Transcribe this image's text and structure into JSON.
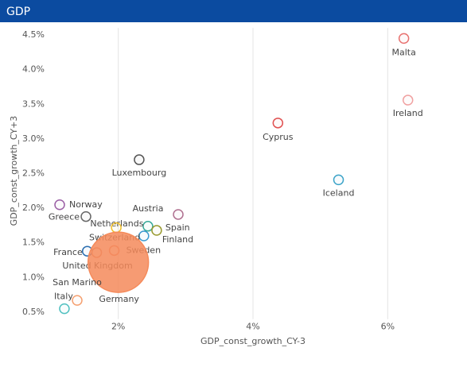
{
  "chart_data": {
    "type": "scatter",
    "title": "GDP",
    "x_label": "GDP_const_growth_CY-3",
    "y_label": "GDP_const_growth_CY+3",
    "xlim": [
      1,
      7
    ],
    "ylim": [
      0.4,
      4.6
    ],
    "xticks": [
      {
        "value": 2,
        "label": "2%"
      },
      {
        "value": 4,
        "label": "4%"
      },
      {
        "value": 6,
        "label": "6%"
      }
    ],
    "yticks": [
      {
        "value": 0.5,
        "label": "0.5%"
      },
      {
        "value": 1.0,
        "label": "1.0%"
      },
      {
        "value": 1.5,
        "label": "1.5%"
      },
      {
        "value": 2.0,
        "label": "2.0%"
      },
      {
        "value": 2.5,
        "label": "2.5%"
      },
      {
        "value": 3.0,
        "label": "3.0%"
      },
      {
        "value": 3.5,
        "label": "3.5%"
      },
      {
        "value": 4.0,
        "label": "4.0%"
      },
      {
        "value": 4.5,
        "label": "4.5%"
      }
    ],
    "grid": true,
    "series": [
      {
        "name": "Malta",
        "color": "#e8716f",
        "x": [
          6.24
        ],
        "values": [
          4.45
        ],
        "sizes": [
          1
        ]
      },
      {
        "name": "Ireland",
        "color": "#f0a0a0",
        "x": [
          6.3
        ],
        "values": [
          3.56
        ],
        "sizes": [
          1
        ]
      },
      {
        "name": "Cyprus",
        "color": "#e05050",
        "x": [
          4.37
        ],
        "values": [
          3.23
        ],
        "sizes": [
          1
        ]
      },
      {
        "name": "Iceland",
        "color": "#3ba3c8",
        "x": [
          5.27
        ],
        "values": [
          2.41
        ],
        "sizes": [
          1
        ]
      },
      {
        "name": "Luxembourg",
        "color": "#555555",
        "x": [
          2.31
        ],
        "values": [
          2.7
        ],
        "sizes": [
          1
        ]
      },
      {
        "name": "Norway",
        "color": "#9b5fa5",
        "x": [
          1.13
        ],
        "values": [
          2.05
        ],
        "sizes": [
          1
        ]
      },
      {
        "name": "Greece",
        "color": "#666666",
        "x": [
          1.52
        ],
        "values": [
          1.88
        ],
        "sizes": [
          1
        ]
      },
      {
        "name": "Austria",
        "color": "#b07090",
        "x": [
          2.89
        ],
        "values": [
          1.91
        ],
        "sizes": [
          1
        ]
      },
      {
        "name": "Netherlands",
        "color": "#3aaa9a",
        "x": [
          2.44
        ],
        "values": [
          1.74
        ],
        "sizes": [
          1
        ]
      },
      {
        "name": "Spain",
        "color": "#999a30",
        "x": [
          2.57
        ],
        "values": [
          1.68
        ],
        "sizes": [
          1
        ]
      },
      {
        "name": "Finland",
        "color": "#3a9ad0",
        "x": [
          2.38
        ],
        "values": [
          1.6
        ],
        "sizes": [
          1
        ]
      },
      {
        "name": "Switzerland",
        "color": "#f0c030",
        "x": [
          1.97
        ],
        "values": [
          1.72
        ],
        "sizes": [
          1
        ]
      },
      {
        "name": "Sweden",
        "color": "#f08a70",
        "x": [
          1.94
        ],
        "values": [
          1.39
        ],
        "sizes": [
          1
        ]
      },
      {
        "name": "France",
        "color": "#2c6fb0",
        "x": [
          1.54
        ],
        "values": [
          1.38
        ],
        "sizes": [
          1
        ]
      },
      {
        "name": "United Kingdom",
        "color": "#e09070",
        "x": [
          1.68
        ],
        "values": [
          1.36
        ],
        "sizes": [
          1
        ]
      },
      {
        "name": "Germany",
        "color": "#f58a5a",
        "x": [
          2.0
        ],
        "values": [
          1.22
        ],
        "sizes": [
          40
        ]
      },
      {
        "name": "San Marino",
        "color": "#f5a070",
        "x": [
          1.39
        ],
        "values": [
          0.67
        ],
        "sizes": [
          1
        ]
      },
      {
        "name": "Italy",
        "color": "#50c0c0",
        "x": [
          1.2
        ],
        "values": [
          0.55
        ],
        "sizes": [
          1
        ]
      }
    ]
  }
}
